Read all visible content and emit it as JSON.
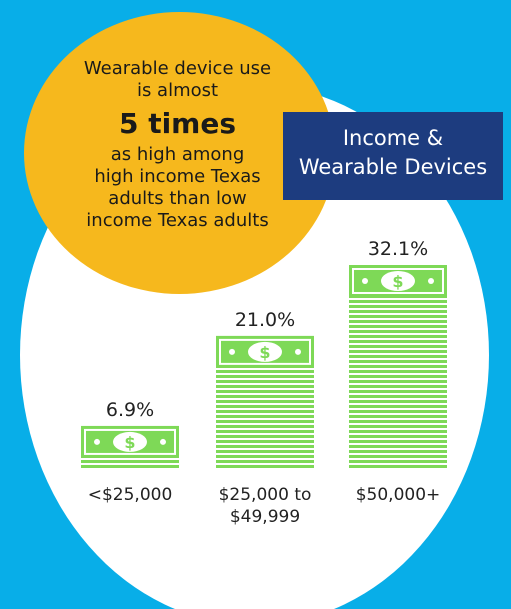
{
  "callout": {
    "line1": "Wearable device use",
    "line2": "is almost",
    "highlight": "5 times",
    "line3": "as high among",
    "line4": "high income Texas",
    "line5": "adults than low",
    "line6": "income Texas adults"
  },
  "title_box": {
    "line1": "Income &",
    "line2": "Wearable Devices"
  },
  "colors": {
    "background": "#08aee8",
    "circle": "#ffffff",
    "callout": "#f6b81d",
    "title_box": "#1d3c7f",
    "money": "#7ed957"
  },
  "icons": [
    "money-stack-icon",
    "dollar-sign-icon"
  ],
  "chart_data": {
    "type": "bar",
    "categories": [
      [
        "<$25,000"
      ],
      [
        "$25,000 to",
        "$49,999"
      ],
      [
        "$50,000+"
      ]
    ],
    "values": [
      6.9,
      21.0,
      32.1
    ],
    "value_labels": [
      "6.9%",
      "21.0%",
      "32.1%"
    ],
    "unit": "%",
    "ylim": [
      0,
      32.1
    ]
  }
}
